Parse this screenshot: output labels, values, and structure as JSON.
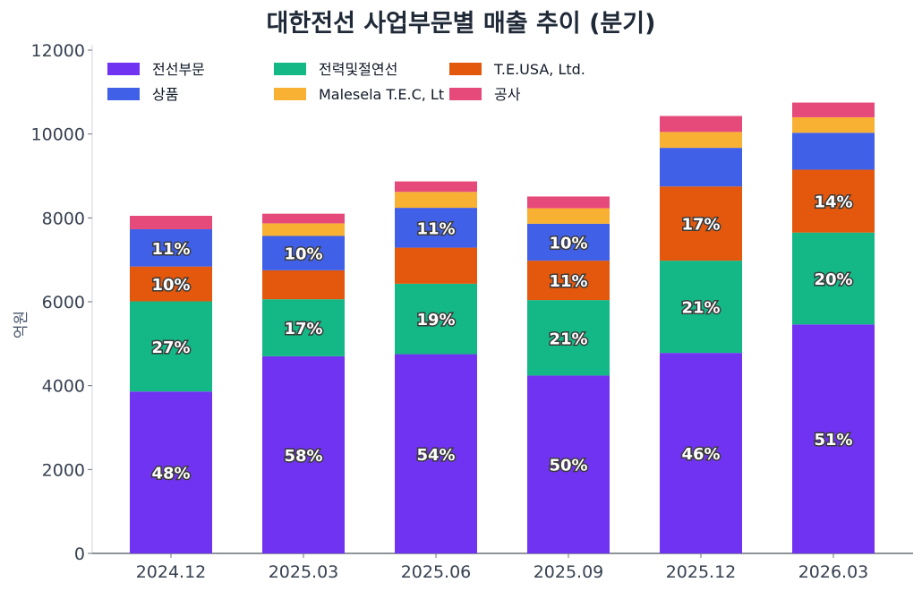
{
  "chart_data": {
    "type": "bar",
    "stacked": true,
    "title": "대한전선 사업부문별 매출 추이 (분기)",
    "xlabel": "",
    "ylabel": "억원",
    "ylim": [
      0,
      12000
    ],
    "yticks": [
      0,
      2000,
      4000,
      6000,
      8000,
      10000,
      12000
    ],
    "categories": [
      "2024.12",
      "2025.03",
      "2025.06",
      "2025.09",
      "2025.12",
      "2026.03"
    ],
    "legend_position": "top-left",
    "grid": false,
    "series": [
      {
        "name": "전선부문",
        "color": "#7133f2",
        "values": [
          3860,
          4700,
          4750,
          4240,
          4780,
          5460
        ],
        "labels": [
          "48%",
          "58%",
          "54%",
          "50%",
          "46%",
          "51%"
        ]
      },
      {
        "name": "전력및절연선",
        "color": "#14b886",
        "values": [
          2150,
          1360,
          1680,
          1800,
          2200,
          2190
        ],
        "labels": [
          "27%",
          "17%",
          "19%",
          "21%",
          "21%",
          "20%"
        ]
      },
      {
        "name": "T.E.USA, Ltd.",
        "color": "#e3580d",
        "values": [
          830,
          690,
          860,
          940,
          1770,
          1500
        ],
        "labels": [
          "10%",
          "",
          "",
          "11%",
          "17%",
          "14%"
        ]
      },
      {
        "name": "상품",
        "color": "#4160e8",
        "values": [
          890,
          820,
          950,
          880,
          920,
          880
        ],
        "labels": [
          "11%",
          "10%",
          "11%",
          "10%",
          "",
          ""
        ]
      },
      {
        "name": "Malesela T.E.C, Lt",
        "color": "#f8b133",
        "values": [
          0,
          300,
          380,
          370,
          380,
          370
        ],
        "labels": [
          "",
          "",
          "",
          "",
          "",
          ""
        ]
      },
      {
        "name": "공사",
        "color": "#e64a7b",
        "values": [
          320,
          230,
          250,
          280,
          380,
          350
        ],
        "labels": [
          "",
          "",
          "",
          "",
          "",
          ""
        ]
      }
    ]
  }
}
